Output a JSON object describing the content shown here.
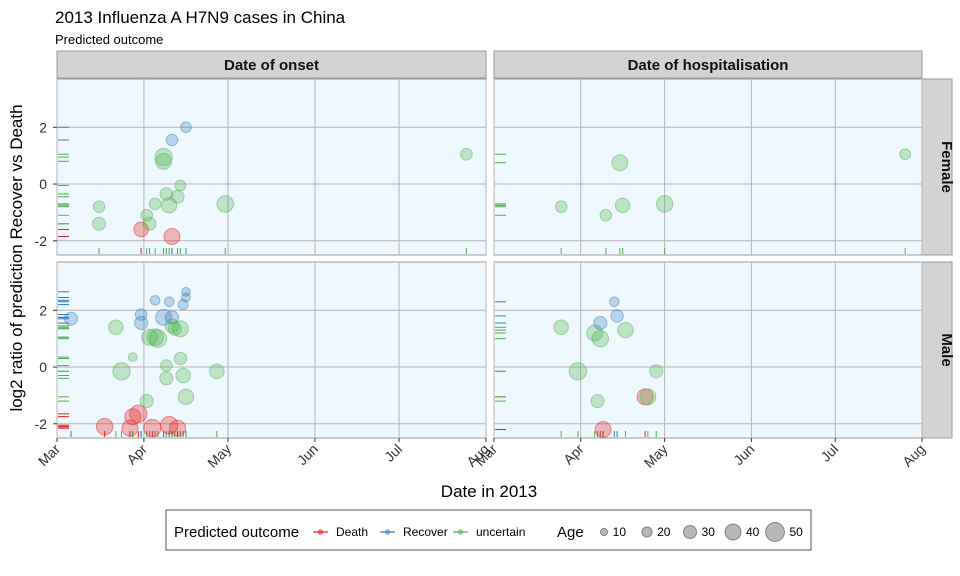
{
  "chart_data": {
    "type": "scatter",
    "title": "2013 Influenza A H7N9 cases in China",
    "subtitle": "Predicted outcome",
    "xlabel": "Date in 2013",
    "ylabel": "log2 ratio of prediction Recover vs Death",
    "xlim": [
      "2013-03-01",
      "2013-08-01"
    ],
    "ylim": [
      -2.5,
      3.7
    ],
    "x_ticks": [
      {
        "date": "2013-03-01",
        "label": "Mar"
      },
      {
        "date": "2013-04-01",
        "label": "Apr"
      },
      {
        "date": "2013-05-01",
        "label": "May"
      },
      {
        "date": "2013-06-01",
        "label": "Jun"
      },
      {
        "date": "2013-07-01",
        "label": "Jul"
      },
      {
        "date": "2013-08-01",
        "label": "Aug"
      }
    ],
    "y_ticks": [
      -2,
      0,
      2
    ],
    "grid": true,
    "legend_position": "bottom",
    "col_facets": [
      "Date of onset",
      "Date of hospitalisation"
    ],
    "row_facets": [
      "Female",
      "Male"
    ],
    "color_legend": {
      "title": "Predicted outcome",
      "entries": [
        {
          "label": "Death",
          "color": "#e41a1c"
        },
        {
          "label": "Recover",
          "color": "#377eb8"
        },
        {
          "label": "uncertain",
          "color": "#4daf4a"
        }
      ]
    },
    "size_legend": {
      "title": "Age",
      "values": [
        10,
        20,
        30,
        40,
        50
      ]
    },
    "panels": [
      {
        "col": "Date of onset",
        "row": "Female",
        "points": [
          {
            "x": "2013-03-16",
            "y": -0.8,
            "outcome": "uncertain",
            "age": 25
          },
          {
            "x": "2013-03-16",
            "y": -1.4,
            "outcome": "uncertain",
            "age": 30
          },
          {
            "x": "2013-03-31",
            "y": -1.6,
            "outcome": "Death",
            "age": 35
          },
          {
            "x": "2013-04-02",
            "y": -1.1,
            "outcome": "uncertain",
            "age": 25
          },
          {
            "x": "2013-04-03",
            "y": -1.4,
            "outcome": "uncertain",
            "age": 30
          },
          {
            "x": "2013-04-05",
            "y": -0.7,
            "outcome": "uncertain",
            "age": 25
          },
          {
            "x": "2013-04-08",
            "y": 0.8,
            "outcome": "uncertain",
            "age": 40
          },
          {
            "x": "2013-04-08",
            "y": 0.95,
            "outcome": "uncertain",
            "age": 45
          },
          {
            "x": "2013-04-09",
            "y": -0.35,
            "outcome": "uncertain",
            "age": 28
          },
          {
            "x": "2013-04-10",
            "y": -0.75,
            "outcome": "uncertain",
            "age": 38
          },
          {
            "x": "2013-04-11",
            "y": -1.85,
            "outcome": "Death",
            "age": 40
          },
          {
            "x": "2013-04-11",
            "y": 1.55,
            "outcome": "Recover",
            "age": 25
          },
          {
            "x": "2013-04-13",
            "y": -0.45,
            "outcome": "uncertain",
            "age": 30
          },
          {
            "x": "2013-04-14",
            "y": -0.05,
            "outcome": "uncertain",
            "age": 22
          },
          {
            "x": "2013-04-16",
            "y": 2.0,
            "outcome": "Recover",
            "age": 22
          },
          {
            "x": "2013-04-30",
            "y": -0.7,
            "outcome": "uncertain",
            "age": 42
          },
          {
            "x": "2013-07-25",
            "y": 1.05,
            "outcome": "uncertain",
            "age": 25
          }
        ]
      },
      {
        "col": "Date of hospitalisation",
        "row": "Female",
        "points": [
          {
            "x": "2013-03-25",
            "y": -0.8,
            "outcome": "uncertain",
            "age": 25
          },
          {
            "x": "2013-04-10",
            "y": -1.1,
            "outcome": "uncertain",
            "age": 25
          },
          {
            "x": "2013-04-15",
            "y": 0.75,
            "outcome": "uncertain",
            "age": 40
          },
          {
            "x": "2013-04-16",
            "y": -0.75,
            "outcome": "uncertain",
            "age": 35
          },
          {
            "x": "2013-05-01",
            "y": -0.7,
            "outcome": "uncertain",
            "age": 42
          },
          {
            "x": "2013-07-26",
            "y": 1.05,
            "outcome": "uncertain",
            "age": 22
          }
        ]
      },
      {
        "col": "Date of onset",
        "row": "Male",
        "points": [
          {
            "x": "2013-03-06",
            "y": 1.7,
            "outcome": "Recover",
            "age": 30
          },
          {
            "x": "2013-03-18",
            "y": -2.1,
            "outcome": "Death",
            "age": 42
          },
          {
            "x": "2013-03-22",
            "y": 1.4,
            "outcome": "uncertain",
            "age": 35
          },
          {
            "x": "2013-03-24",
            "y": -0.15,
            "outcome": "uncertain",
            "age": 45
          },
          {
            "x": "2013-03-27",
            "y": -2.15,
            "outcome": "Death",
            "age": 40
          },
          {
            "x": "2013-03-28",
            "y": -1.75,
            "outcome": "Death",
            "age": 40
          },
          {
            "x": "2013-03-28",
            "y": 0.35,
            "outcome": "uncertain",
            "age": 15
          },
          {
            "x": "2013-03-30",
            "y": -1.65,
            "outcome": "Death",
            "age": 45
          },
          {
            "x": "2013-03-31",
            "y": 1.85,
            "outcome": "Recover",
            "age": 25
          },
          {
            "x": "2013-03-31",
            "y": 1.55,
            "outcome": "Recover",
            "age": 30
          },
          {
            "x": "2013-04-02",
            "y": -1.2,
            "outcome": "uncertain",
            "age": 30
          },
          {
            "x": "2013-04-03",
            "y": 1.05,
            "outcome": "uncertain",
            "age": 40
          },
          {
            "x": "2013-04-04",
            "y": -2.15,
            "outcome": "Death",
            "age": 45
          },
          {
            "x": "2013-04-05",
            "y": 2.35,
            "outcome": "Recover",
            "age": 18
          },
          {
            "x": "2013-04-05",
            "y": 1.05,
            "outcome": "uncertain",
            "age": 42
          },
          {
            "x": "2013-04-06",
            "y": 1.0,
            "outcome": "uncertain",
            "age": 45
          },
          {
            "x": "2013-04-08",
            "y": 1.75,
            "outcome": "Recover",
            "age": 40
          },
          {
            "x": "2013-04-09",
            "y": 0.05,
            "outcome": "uncertain",
            "age": 25
          },
          {
            "x": "2013-04-09",
            "y": -0.4,
            "outcome": "uncertain",
            "age": 30
          },
          {
            "x": "2013-04-10",
            "y": -2.05,
            "outcome": "Death",
            "age": 45
          },
          {
            "x": "2013-04-10",
            "y": 2.3,
            "outcome": "Recover",
            "age": 18
          },
          {
            "x": "2013-04-11",
            "y": 1.45,
            "outcome": "uncertain",
            "age": 32
          },
          {
            "x": "2013-04-11",
            "y": 1.75,
            "outcome": "Recover",
            "age": 30
          },
          {
            "x": "2013-04-12",
            "y": 1.35,
            "outcome": "uncertain",
            "age": 30
          },
          {
            "x": "2013-04-13",
            "y": -2.15,
            "outcome": "Death",
            "age": 40
          },
          {
            "x": "2013-04-14",
            "y": 1.35,
            "outcome": "uncertain",
            "age": 40
          },
          {
            "x": "2013-04-14",
            "y": 0.3,
            "outcome": "uncertain",
            "age": 28
          },
          {
            "x": "2013-04-15",
            "y": 2.2,
            "outcome": "Recover",
            "age": 20
          },
          {
            "x": "2013-04-15",
            "y": -0.3,
            "outcome": "uncertain",
            "age": 35
          },
          {
            "x": "2013-04-16",
            "y": 2.45,
            "outcome": "Recover",
            "age": 15
          },
          {
            "x": "2013-04-16",
            "y": -1.05,
            "outcome": "uncertain",
            "age": 38
          },
          {
            "x": "2013-04-16",
            "y": 2.65,
            "outcome": "Recover",
            "age": 15
          },
          {
            "x": "2013-04-27",
            "y": -0.15,
            "outcome": "uncertain",
            "age": 35
          }
        ]
      },
      {
        "col": "Date of hospitalisation",
        "row": "Male",
        "points": [
          {
            "x": "2013-03-25",
            "y": 1.4,
            "outcome": "uncertain",
            "age": 35
          },
          {
            "x": "2013-03-31",
            "y": -0.15,
            "outcome": "uncertain",
            "age": 45
          },
          {
            "x": "2013-04-06",
            "y": 1.2,
            "outcome": "uncertain",
            "age": 40
          },
          {
            "x": "2013-04-07",
            "y": -1.2,
            "outcome": "uncertain",
            "age": 30
          },
          {
            "x": "2013-04-08",
            "y": 1.55,
            "outcome": "Recover",
            "age": 30
          },
          {
            "x": "2013-04-08",
            "y": 1.0,
            "outcome": "uncertain",
            "age": 42
          },
          {
            "x": "2013-04-09",
            "y": -2.2,
            "outcome": "Death",
            "age": 40
          },
          {
            "x": "2013-04-13",
            "y": 2.3,
            "outcome": "Recover",
            "age": 18
          },
          {
            "x": "2013-04-14",
            "y": 1.8,
            "outcome": "Recover",
            "age": 28
          },
          {
            "x": "2013-04-17",
            "y": 1.3,
            "outcome": "uncertain",
            "age": 38
          },
          {
            "x": "2013-04-24",
            "y": -1.05,
            "outcome": "Death",
            "age": 40
          },
          {
            "x": "2013-04-25",
            "y": -1.05,
            "outcome": "uncertain",
            "age": 40
          },
          {
            "x": "2013-04-28",
            "y": -0.15,
            "outcome": "uncertain",
            "age": 30
          }
        ]
      }
    ]
  }
}
